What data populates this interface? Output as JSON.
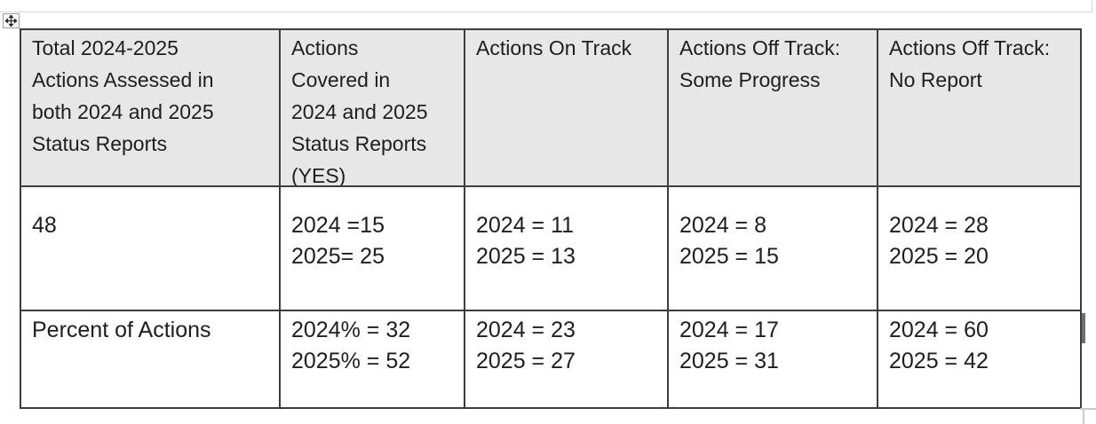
{
  "page": {
    "kind": "word-document-table",
    "background": "#ffffff"
  },
  "icons": {
    "table_move_handle": "move-cross-icon"
  },
  "colors": {
    "header_bg": "#e8e7e7",
    "border": "#3d3d3d",
    "text": "#1e1e1e",
    "guide_line": "#d9d9d9"
  },
  "table": {
    "header_cells": [
      {
        "lines": [
          "Total 2024-2025",
          "Actions Assessed in",
          "both 2024 and 2025",
          "Status Reports"
        ]
      },
      {
        "lines": [
          "Actions",
          "Covered in",
          "2024 and 2025",
          "Status Reports",
          "(YES)"
        ]
      },
      {
        "lines": [
          "Actions On Track"
        ]
      },
      {
        "lines": [
          "Actions Off Track:",
          "Some Progress"
        ]
      },
      {
        "lines": [
          "Actions Off Track:",
          "No Report"
        ]
      }
    ],
    "rows": [
      {
        "cells": [
          {
            "lines": [
              "48"
            ]
          },
          {
            "lines": [
              "2024 =15",
              "2025= 25"
            ]
          },
          {
            "lines": [
              "2024 = 11",
              "2025 = 13"
            ]
          },
          {
            "lines": [
              "2024 = 8",
              "2025 = 15"
            ]
          },
          {
            "lines": [
              "2024 = 28",
              "2025 = 20"
            ]
          }
        ]
      },
      {
        "cells": [
          {
            "lines": [
              "Percent of Actions"
            ]
          },
          {
            "lines": [
              "2024% = 32",
              "2025% = 52"
            ]
          },
          {
            "lines": [
              "2024 = 23",
              "2025 = 27"
            ]
          },
          {
            "lines": [
              "2024 = 17",
              "2025 = 31"
            ]
          },
          {
            "lines": [
              "2024 = 60",
              "2025 = 42"
            ]
          }
        ]
      }
    ]
  }
}
